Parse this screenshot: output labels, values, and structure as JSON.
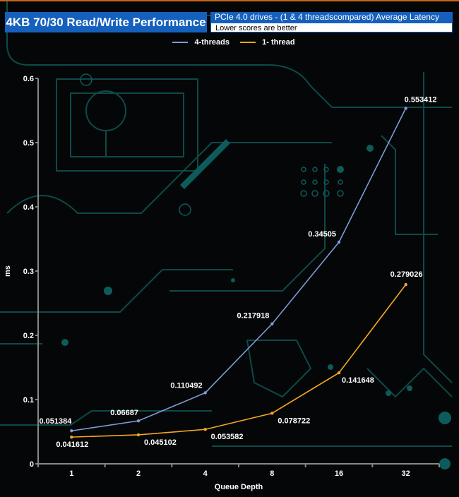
{
  "header": {
    "title": "4KB 70/30 Read/Write Performance",
    "subtitle": "PCIe 4.0 drives - (1 & 4 threadscompared)  Average Latency",
    "note": "Lower scores are better"
  },
  "chart_data": {
    "type": "line",
    "categories": [
      "1",
      "2",
      "4",
      "8",
      "16",
      "32"
    ],
    "xlabel": "Queue Depth",
    "ylabel": "ms",
    "ylim": [
      0,
      0.6
    ],
    "yticks": [
      "0",
      "0.1",
      "0.2",
      "0.3",
      "0.4",
      "0.5",
      "0.6"
    ],
    "legend_position": "top",
    "grid": false,
    "series": [
      {
        "name": "4-threads",
        "color": "#7f9bd6",
        "values": [
          0.051384,
          0.06687,
          0.110492,
          0.217918,
          0.34505,
          0.553412
        ],
        "labels": [
          "0.051384",
          "0.06687",
          "0.110492",
          "0.217918",
          "0.34505",
          "0.553412"
        ]
      },
      {
        "name": "1- thread",
        "color": "#f5a623",
        "values": [
          0.041612,
          0.045102,
          0.053582,
          0.078722,
          0.141648,
          0.279026
        ],
        "labels": [
          "0.041612",
          "0.045102",
          "0.053582",
          "0.078722",
          "0.141648",
          "0.279026"
        ]
      }
    ]
  }
}
